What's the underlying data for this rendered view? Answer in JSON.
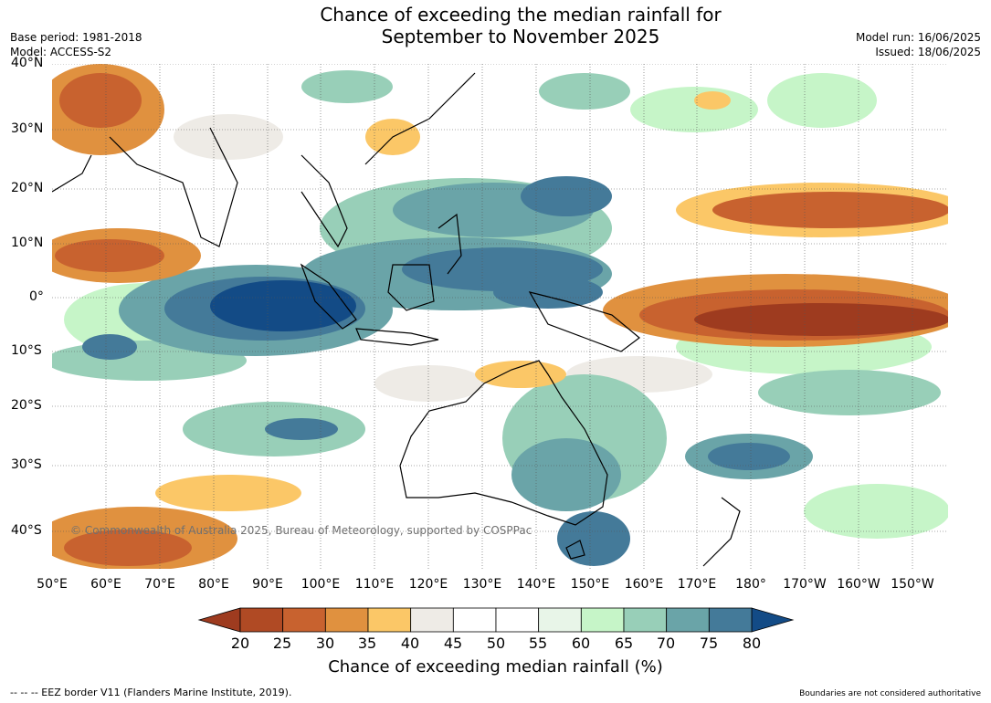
{
  "title": {
    "line1": "Chance of exceeding the median rainfall for",
    "line2": "September to November 2025"
  },
  "meta": {
    "base_period": "Base period: 1981-2018",
    "model": "Model: ACCESS-S2",
    "model_run": "Model run: 16/06/2025",
    "issued": "Issued: 18/06/2025"
  },
  "map": {
    "lat_labels": [
      "40°N",
      "30°N",
      "20°N",
      "10°N",
      "0°",
      "10°S",
      "20°S",
      "30°S",
      "40°S"
    ],
    "lon_labels": [
      "50°E",
      "60°E",
      "70°E",
      "80°E",
      "90°E",
      "100°E",
      "110°E",
      "120°E",
      "130°E",
      "140°E",
      "150°E",
      "160°E",
      "170°E",
      "180°",
      "170°W",
      "160°W",
      "150°W"
    ],
    "copyright": "© Commonwealth of Australia 2025, Bureau of Meteorology, supported by COSPPac",
    "anomaly_regions": [
      {
        "name": "eastern-indian-ocean-wet",
        "category": "80",
        "color": "#134b86"
      },
      {
        "name": "maritime-continent-wet",
        "category": "75",
        "color": "#447a99"
      },
      {
        "name": "western-pacific-wet",
        "category": "70",
        "color": "#6aa4a8"
      },
      {
        "name": "equatorial-central-pacific-dry",
        "category": "20",
        "color": "#9e3b1f"
      },
      {
        "name": "north-pacific-dry",
        "category": "25",
        "color": "#c3622a"
      },
      {
        "name": "arabian-sea-dry",
        "category": "30",
        "color": "#e0913f"
      },
      {
        "name": "southern-indian-ocean-dry",
        "category": "35",
        "color": "#fbc767"
      }
    ]
  },
  "colorbar": {
    "title": "Chance of exceeding median rainfall (%)",
    "ticks": [
      "20",
      "25",
      "30",
      "35",
      "40",
      "45",
      "50",
      "55",
      "60",
      "65",
      "70",
      "75",
      "80"
    ],
    "bins": [
      {
        "range": "<20",
        "color": "#9e3b1f"
      },
      {
        "range": "20-25",
        "color": "#b04a24"
      },
      {
        "range": "25-30",
        "color": "#c8622f"
      },
      {
        "range": "30-35",
        "color": "#e0913f"
      },
      {
        "range": "35-40",
        "color": "#fbc767"
      },
      {
        "range": "40-45",
        "color": "#eeebe6"
      },
      {
        "range": "45-50",
        "color": "#ffffff"
      },
      {
        "range": "50-55",
        "color": "#ffffff"
      },
      {
        "range": "55-60",
        "color": "#e8f5e8"
      },
      {
        "range": "60-65",
        "color": "#c6f5c8"
      },
      {
        "range": "65-70",
        "color": "#98cfb8"
      },
      {
        "range": "70-75",
        "color": "#6aa4a8"
      },
      {
        "range": "75-80",
        "color": "#447a99"
      },
      {
        "range": ">80",
        "color": "#134b86"
      }
    ]
  },
  "footer": {
    "eez_note": "--  --  -- EEZ border V11 (Flanders Marine Institute, 2019).",
    "disclaimer": "Boundaries are not considered authoritative"
  }
}
